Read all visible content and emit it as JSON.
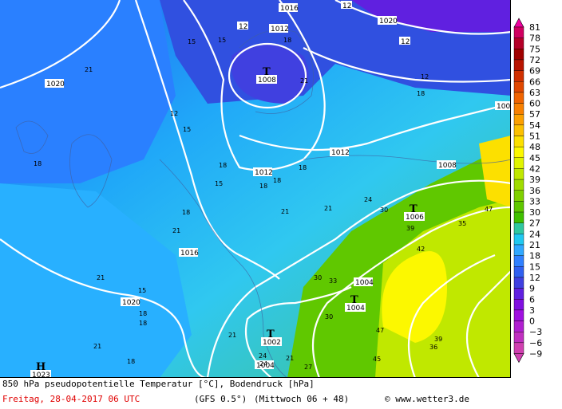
{
  "legend": {
    "values": [
      "81",
      "78",
      "75",
      "72",
      "69",
      "66",
      "63",
      "60",
      "57",
      "54",
      "51",
      "48",
      "45",
      "42",
      "39",
      "36",
      "33",
      "30",
      "27",
      "24",
      "21",
      "18",
      "15",
      "12",
      "9",
      "6",
      "3",
      "0",
      "−3",
      "−6",
      "−9"
    ],
    "colors": [
      "#f000a0",
      "#d00060",
      "#b40028",
      "#a00000",
      "#b81400",
      "#d03000",
      "#e04800",
      "#f06400",
      "#f88000",
      "#fca000",
      "#fcc000",
      "#fce000",
      "#fcf800",
      "#e0f400",
      "#c0e800",
      "#a0dc00",
      "#80d000",
      "#60c800",
      "#40c000",
      "#30c8a0",
      "#20c8f0",
      "#30a8ff",
      "#3080ff",
      "#3060f0",
      "#4040e0",
      "#6020e0",
      "#8010e0",
      "#a010e0",
      "#b020d0",
      "#c030c0",
      "#d040b0"
    ]
  },
  "pressure_systems": [
    {
      "letter": "T",
      "value": "1008"
    },
    {
      "letter": "T",
      "value": "1006"
    },
    {
      "letter": "T",
      "value": "1004"
    },
    {
      "letter": "T",
      "value": "1002"
    },
    {
      "letter": "H",
      "value": "1023"
    }
  ],
  "isobar_labels": [
    "1016",
    "1012",
    "1020",
    "12",
    "12",
    "1020",
    "12",
    "1012",
    "1008",
    "1012",
    "1008",
    "1016",
    "1004",
    "1020",
    "1004"
  ],
  "temp_labels": [
    "21",
    "18",
    "12",
    "15",
    "18",
    "15",
    "12",
    "18",
    "18",
    "21",
    "18",
    "15",
    "18",
    "21",
    "18",
    "18",
    "21",
    "24",
    "21",
    "30",
    "39",
    "35",
    "42",
    "47",
    "30",
    "33",
    "21",
    "18",
    "15",
    "18",
    "21",
    "24",
    "30",
    "27",
    "47",
    "45",
    "39",
    "36",
    "18",
    "21",
    "24",
    "21",
    "15"
  ],
  "footer": {
    "description": "850 hPa pseudopotentielle Temperatur [°C], Bodendruck [hPa]",
    "date": "Freitag, 28-04-2017  06 UTC",
    "model": "(GFS 0.5°)",
    "run": "(Mittwoch 06 + 48)",
    "copyright": "© www.wetter3.de"
  }
}
